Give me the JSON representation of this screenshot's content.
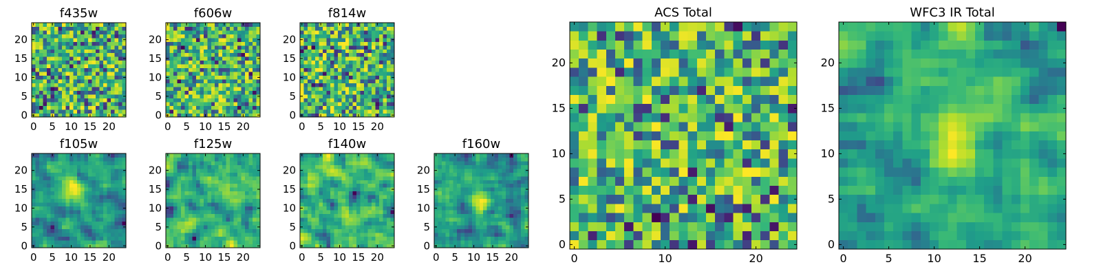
{
  "chart_data": [
    {
      "type": "heatmap",
      "title": "f435w",
      "seed": 435,
      "smooth": 0,
      "grid": "small",
      "xlim": [
        -0.5,
        24.5
      ],
      "ylim": [
        -0.5,
        24.5
      ],
      "xticks": [
        0,
        5,
        10,
        15,
        20
      ],
      "yticks": [
        0,
        5,
        10,
        15,
        20
      ],
      "xlabel": "",
      "ylabel": "",
      "colormap": "viridis"
    },
    {
      "type": "heatmap",
      "title": "f606w",
      "seed": 606,
      "smooth": 0,
      "grid": "small",
      "xlim": [
        -0.5,
        24.5
      ],
      "ylim": [
        -0.5,
        24.5
      ],
      "xticks": [
        0,
        5,
        10,
        15,
        20
      ],
      "yticks": [
        0,
        5,
        10,
        15,
        20
      ],
      "xlabel": "",
      "ylabel": "",
      "colormap": "viridis"
    },
    {
      "type": "heatmap",
      "title": "f814w",
      "seed": 814,
      "smooth": 0,
      "grid": "small",
      "xlim": [
        -0.5,
        24.5
      ],
      "ylim": [
        -0.5,
        24.5
      ],
      "xticks": [
        0,
        5,
        10,
        15,
        20
      ],
      "yticks": [
        0,
        5,
        10,
        15,
        20
      ],
      "xlabel": "",
      "ylabel": "",
      "colormap": "viridis"
    },
    {
      "type": "heatmap",
      "title": "f105w",
      "seed": 105,
      "smooth": 1,
      "blob": [
        10,
        15
      ],
      "grid": "small",
      "xlim": [
        -0.5,
        24.5
      ],
      "ylim": [
        -0.5,
        24.5
      ],
      "xticks": [
        0,
        5,
        10,
        15,
        20
      ],
      "yticks": [
        0,
        5,
        10,
        15,
        20
      ],
      "xlabel": "",
      "ylabel": "",
      "colormap": "viridis"
    },
    {
      "type": "heatmap",
      "title": "f125w",
      "seed": 125,
      "smooth": 1,
      "grid": "small",
      "xlim": [
        -0.5,
        24.5
      ],
      "ylim": [
        -0.5,
        24.5
      ],
      "xticks": [
        0,
        5,
        10,
        15,
        20
      ],
      "yticks": [
        0,
        5,
        10,
        15,
        20
      ],
      "xlabel": "",
      "ylabel": "",
      "colormap": "viridis"
    },
    {
      "type": "heatmap",
      "title": "f140w",
      "seed": 140,
      "smooth": 1,
      "grid": "small",
      "xlim": [
        -0.5,
        24.5
      ],
      "ylim": [
        -0.5,
        24.5
      ],
      "xticks": [
        0,
        5,
        10,
        15,
        20
      ],
      "yticks": [
        0,
        5,
        10,
        15,
        20
      ],
      "xlabel": "",
      "ylabel": "",
      "colormap": "viridis"
    },
    {
      "type": "heatmap",
      "title": "f160w",
      "seed": 160,
      "smooth": 1,
      "blob": [
        12,
        12
      ],
      "grid": "small",
      "xlim": [
        -0.5,
        24.5
      ],
      "ylim": [
        -0.5,
        24.5
      ],
      "xticks": [
        0,
        5,
        10,
        15,
        20
      ],
      "yticks": [
        0,
        5,
        10,
        15,
        20
      ],
      "xlabel": "",
      "ylabel": "",
      "colormap": "viridis"
    },
    {
      "type": "heatmap",
      "title": "ACS Total",
      "seed": 999,
      "smooth": 0,
      "grid": "large",
      "xlim": [
        -0.5,
        24.5
      ],
      "ylim": [
        -0.5,
        24.5
      ],
      "xticks": [
        0,
        10,
        20
      ],
      "yticks": [
        0,
        5,
        10,
        15,
        20
      ],
      "xlabel": "",
      "ylabel": "",
      "colormap": "viridis"
    },
    {
      "type": "heatmap",
      "title": "WFC3 IR Total",
      "seed": 333,
      "smooth": 1,
      "blob": [
        12,
        12
      ],
      "grid": "large",
      "xlim": [
        -0.5,
        24.5
      ],
      "ylim": [
        -0.5,
        24.5
      ],
      "xticks": [
        0,
        5,
        10,
        15,
        20
      ],
      "yticks": [
        0,
        5,
        10,
        15,
        20
      ],
      "xlabel": "",
      "ylabel": "",
      "colormap": "viridis"
    }
  ]
}
